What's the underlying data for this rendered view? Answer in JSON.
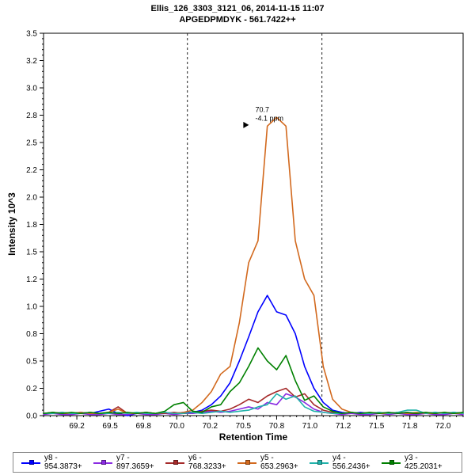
{
  "header": {
    "title_line1": "Ellis_126_3303_3121_06, 2014-11-15 11:07",
    "title_line2": "APGEDPMDYK - 561.7422++"
  },
  "chart_data": {
    "type": "line",
    "title": "Ellis_126_3303_3121_06, 2014-11-15 11:07",
    "subtitle": "APGEDPMDYK - 561.7422++",
    "xlabel": "Retention Time",
    "ylabel": "Intensity 10^3",
    "xlim": [
      69.0,
      72.15
    ],
    "ylim": [
      0,
      3.5
    ],
    "grid": false,
    "legend_position": "bottom",
    "x_ticks": [
      {
        "value": 69.25,
        "label": "69.2"
      },
      {
        "value": 69.5,
        "label": "69.5"
      },
      {
        "value": 69.75,
        "label": "69.8"
      },
      {
        "value": 70.0,
        "label": "70.0"
      },
      {
        "value": 70.25,
        "label": "70.2"
      },
      {
        "value": 70.5,
        "label": "70.5"
      },
      {
        "value": 70.75,
        "label": "70.8"
      },
      {
        "value": 71.0,
        "label": "71.0"
      },
      {
        "value": 71.25,
        "label": "71.2"
      },
      {
        "value": 71.5,
        "label": "71.5"
      },
      {
        "value": 71.75,
        "label": "71.8"
      },
      {
        "value": 72.0,
        "label": "72.0"
      }
    ],
    "y_ticks": [
      {
        "value": 0.0,
        "label": "0.0"
      },
      {
        "value": 0.25,
        "label": "0.2"
      },
      {
        "value": 0.5,
        "label": "0.5"
      },
      {
        "value": 0.75,
        "label": "0.8"
      },
      {
        "value": 1.0,
        "label": "1.0"
      },
      {
        "value": 1.25,
        "label": "1.2"
      },
      {
        "value": 1.5,
        "label": "1.5"
      },
      {
        "value": 1.75,
        "label": "1.8"
      },
      {
        "value": 2.0,
        "label": "2.0"
      },
      {
        "value": 2.25,
        "label": "2.2"
      },
      {
        "value": 2.5,
        "label": "2.5"
      },
      {
        "value": 2.75,
        "label": "2.8"
      },
      {
        "value": 3.0,
        "label": "3.0"
      },
      {
        "value": 3.25,
        "label": "3.2"
      },
      {
        "value": 3.5,
        "label": "3.5"
      }
    ],
    "integration_boundaries": [
      70.08,
      71.09
    ],
    "annotation": {
      "rt_label": "70.7",
      "ppm_label": "-4.1 ppm",
      "color": "#cc5a1e",
      "text_x": 70.59,
      "rt_y": 2.78,
      "ppm_y": 2.7,
      "arrow_x": 70.5,
      "arrow_y": 2.66
    },
    "x": [
      69.0,
      69.07,
      69.14,
      69.21,
      69.28,
      69.35,
      69.42,
      69.49,
      69.56,
      69.63,
      69.7,
      69.77,
      69.84,
      69.91,
      69.98,
      70.05,
      70.12,
      70.19,
      70.26,
      70.33,
      70.4,
      70.47,
      70.54,
      70.61,
      70.68,
      70.75,
      70.82,
      70.89,
      70.96,
      71.03,
      71.1,
      71.17,
      71.24,
      71.31,
      71.38,
      71.45,
      71.52,
      71.59,
      71.66,
      71.73,
      71.8,
      71.87,
      71.94,
      72.01,
      72.08,
      72.15
    ],
    "series": [
      {
        "name": "y8 - 954.3873+",
        "color": "#0000ff",
        "values": [
          0.02,
          0.03,
          0.02,
          0.02,
          0.03,
          0.02,
          0.04,
          0.06,
          0.02,
          0.0,
          0.02,
          0.03,
          0.02,
          0.03,
          0.02,
          0.03,
          0.03,
          0.05,
          0.1,
          0.18,
          0.3,
          0.5,
          0.72,
          0.95,
          1.1,
          0.95,
          0.92,
          0.75,
          0.45,
          0.25,
          0.12,
          0.05,
          0.03,
          0.02,
          0.03,
          0.02,
          0.02,
          0.03,
          0.02,
          0.03,
          0.02,
          0.02,
          0.03,
          0.02,
          0.03,
          0.02
        ]
      },
      {
        "name": "y7 - 897.3659+",
        "color": "#8a2be2",
        "values": [
          0.01,
          0.02,
          0.01,
          0.01,
          0.02,
          0.01,
          0.01,
          0.02,
          0.01,
          0.01,
          0.02,
          0.01,
          0.01,
          0.02,
          0.01,
          0.02,
          0.02,
          0.03,
          0.04,
          0.03,
          0.04,
          0.06,
          0.08,
          0.06,
          0.12,
          0.1,
          0.2,
          0.17,
          0.12,
          0.06,
          0.03,
          0.02,
          0.01,
          0.02,
          0.01,
          0.01,
          0.02,
          0.01,
          0.02,
          0.01,
          0.01,
          0.02,
          0.01,
          0.01,
          0.02,
          0.01
        ]
      },
      {
        "name": "y6 - 768.3233+",
        "color": "#a52a2a",
        "values": [
          0.02,
          0.02,
          0.03,
          0.02,
          0.02,
          0.03,
          0.02,
          0.03,
          0.08,
          0.02,
          0.02,
          0.03,
          0.02,
          0.02,
          0.03,
          0.02,
          0.03,
          0.04,
          0.05,
          0.04,
          0.06,
          0.1,
          0.15,
          0.12,
          0.18,
          0.22,
          0.25,
          0.17,
          0.2,
          0.1,
          0.05,
          0.03,
          0.02,
          0.03,
          0.02,
          0.02,
          0.03,
          0.02,
          0.03,
          0.02,
          0.02,
          0.03,
          0.02,
          0.03,
          0.02,
          0.03
        ]
      },
      {
        "name": "y5 - 653.2963+",
        "color": "#d2691e",
        "values": [
          0.02,
          0.03,
          0.02,
          0.02,
          0.03,
          0.02,
          0.02,
          0.03,
          0.06,
          0.02,
          0.02,
          0.03,
          0.02,
          0.03,
          0.02,
          0.03,
          0.05,
          0.12,
          0.22,
          0.38,
          0.45,
          0.85,
          1.4,
          1.6,
          2.65,
          2.73,
          2.65,
          1.6,
          1.25,
          1.1,
          0.45,
          0.15,
          0.06,
          0.03,
          0.02,
          0.03,
          0.02,
          0.02,
          0.03,
          0.02,
          0.03,
          0.02,
          0.02,
          0.03,
          0.02,
          0.02
        ]
      },
      {
        "name": "y4 - 556.2436+",
        "color": "#20b2aa",
        "values": [
          0.02,
          0.02,
          0.03,
          0.02,
          0.02,
          0.03,
          0.02,
          0.02,
          0.03,
          0.02,
          0.03,
          0.02,
          0.02,
          0.03,
          0.02,
          0.02,
          0.03,
          0.02,
          0.03,
          0.04,
          0.03,
          0.04,
          0.05,
          0.08,
          0.1,
          0.2,
          0.15,
          0.18,
          0.08,
          0.04,
          0.03,
          0.02,
          0.02,
          0.03,
          0.02,
          0.02,
          0.03,
          0.02,
          0.03,
          0.05,
          0.05,
          0.02,
          0.03,
          0.02,
          0.03,
          0.02
        ]
      },
      {
        "name": "y3 - 425.2031+",
        "color": "#008000",
        "values": [
          0.02,
          0.03,
          0.02,
          0.03,
          0.02,
          0.03,
          0.02,
          0.03,
          0.02,
          0.03,
          0.02,
          0.03,
          0.02,
          0.04,
          0.1,
          0.12,
          0.04,
          0.03,
          0.08,
          0.1,
          0.22,
          0.3,
          0.45,
          0.62,
          0.5,
          0.42,
          0.55,
          0.32,
          0.14,
          0.18,
          0.08,
          0.04,
          0.02,
          0.03,
          0.02,
          0.03,
          0.02,
          0.03,
          0.02,
          0.03,
          0.02,
          0.03,
          0.02,
          0.03,
          0.02,
          0.03
        ]
      }
    ]
  }
}
